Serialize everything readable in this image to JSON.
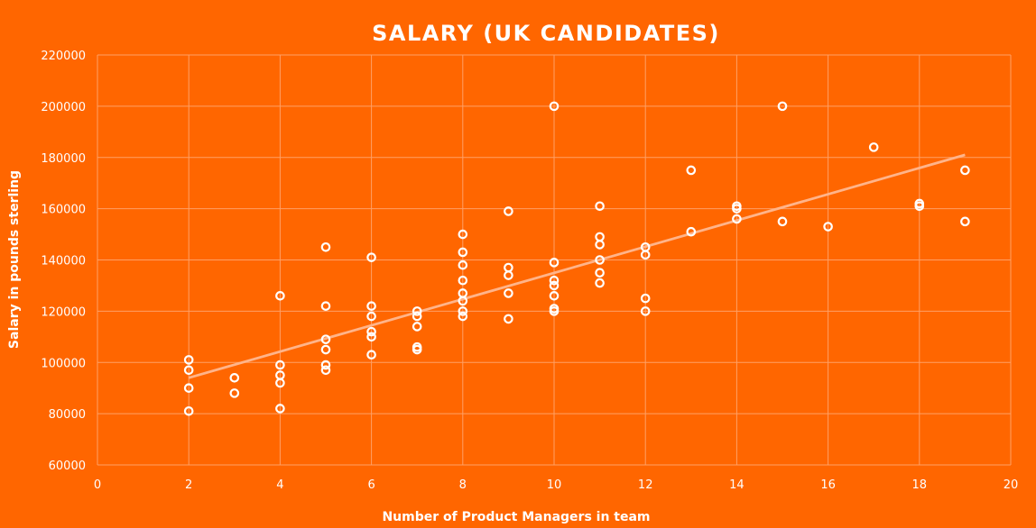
{
  "chart_data": {
    "type": "scatter",
    "title": "SALARY (UK CANDIDATES)",
    "xlabel": "Number of Product Managers in team",
    "ylabel": "Salary in pounds sterling",
    "xlim": [
      0,
      20
    ],
    "ylim": [
      60000,
      220000
    ],
    "x_ticks": [
      0,
      2,
      4,
      6,
      8,
      10,
      12,
      14,
      16,
      18,
      20
    ],
    "y_ticks": [
      60000,
      80000,
      100000,
      120000,
      140000,
      160000,
      180000,
      200000,
      220000
    ],
    "grid": true,
    "marker": "hollow-circle",
    "trendline": {
      "type": "linear",
      "x": [
        2,
        19
      ],
      "y": [
        94000,
        181000
      ]
    },
    "points": [
      [
        2,
        101000
      ],
      [
        2,
        97000
      ],
      [
        2,
        90000
      ],
      [
        2,
        81000
      ],
      [
        3,
        94000
      ],
      [
        3,
        88000
      ],
      [
        4,
        126000
      ],
      [
        4,
        99000
      ],
      [
        4,
        95000
      ],
      [
        4,
        92000
      ],
      [
        4,
        82000
      ],
      [
        5,
        145000
      ],
      [
        5,
        122000
      ],
      [
        5,
        109000
      ],
      [
        5,
        105000
      ],
      [
        5,
        99000
      ],
      [
        5,
        97000
      ],
      [
        6,
        141000
      ],
      [
        6,
        122000
      ],
      [
        6,
        118000
      ],
      [
        6,
        112000
      ],
      [
        6,
        110000
      ],
      [
        6,
        103000
      ],
      [
        7,
        120000
      ],
      [
        7,
        118000
      ],
      [
        7,
        114000
      ],
      [
        7,
        106000
      ],
      [
        7,
        105000
      ],
      [
        8,
        150000
      ],
      [
        8,
        143000
      ],
      [
        8,
        138000
      ],
      [
        8,
        132000
      ],
      [
        8,
        127000
      ],
      [
        8,
        124000
      ],
      [
        8,
        120000
      ],
      [
        8,
        118000
      ],
      [
        9,
        159000
      ],
      [
        9,
        137000
      ],
      [
        9,
        134000
      ],
      [
        9,
        127000
      ],
      [
        9,
        117000
      ],
      [
        10,
        200000
      ],
      [
        10,
        139000
      ],
      [
        10,
        132000
      ],
      [
        10,
        130000
      ],
      [
        10,
        126000
      ],
      [
        10,
        121000
      ],
      [
        10,
        120000
      ],
      [
        11,
        161000
      ],
      [
        11,
        149000
      ],
      [
        11,
        146000
      ],
      [
        11,
        140000
      ],
      [
        11,
        135000
      ],
      [
        11,
        131000
      ],
      [
        12,
        145000
      ],
      [
        12,
        142000
      ],
      [
        12,
        125000
      ],
      [
        12,
        120000
      ],
      [
        13,
        175000
      ],
      [
        13,
        151000
      ],
      [
        14,
        161000
      ],
      [
        14,
        160000
      ],
      [
        14,
        156000
      ],
      [
        15,
        200000
      ],
      [
        15,
        155000
      ],
      [
        16,
        153000
      ],
      [
        17,
        184000
      ],
      [
        18,
        162000
      ],
      [
        18,
        161000
      ],
      [
        19,
        175000
      ],
      [
        19,
        155000
      ]
    ],
    "colors": {
      "background": "#FF6600",
      "marker": "#ffffff",
      "trendline": "#FFB48A",
      "grid": "#FFA066"
    }
  }
}
